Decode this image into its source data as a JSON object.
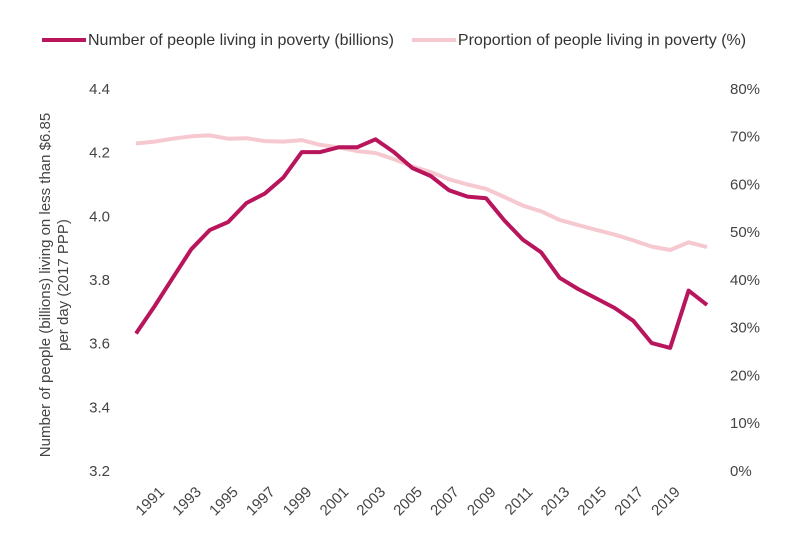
{
  "chart_data": {
    "type": "line",
    "y_axis_label": "Number of people (billions) living on less than $6.85 per day (2017 PPP)",
    "categories": [
      null,
      "1991",
      null,
      "1993",
      null,
      "1995",
      null,
      "1997",
      null,
      "1999",
      null,
      "2001",
      null,
      "2003",
      null,
      "2005",
      null,
      "2007",
      null,
      "2009",
      null,
      "2011",
      null,
      "2013",
      null,
      "2015",
      null,
      "2017",
      null,
      "2019",
      null,
      null
    ],
    "series": [
      {
        "name": "Number of people living in poverty (billions)",
        "color": "#b8155c",
        "values": [
          3.635,
          3.72,
          3.81,
          3.9,
          3.96,
          3.985,
          4.045,
          4.075,
          4.125,
          4.205,
          4.205,
          4.22,
          4.22,
          4.245,
          4.205,
          4.155,
          4.13,
          4.085,
          4.065,
          4.06,
          3.99,
          3.93,
          3.89,
          3.81,
          3.775,
          3.745,
          3.715,
          3.675,
          3.605,
          3.59,
          3.77,
          3.725
        ]
      },
      {
        "name": "Proportion of people living in poverty (%)",
        "color": "#f6c8cf",
        "axis": "y2",
        "values": [
          68.8,
          69.2,
          69.8,
          70.3,
          70.5,
          69.8,
          69.9,
          69.3,
          69.2,
          69.5,
          68.5,
          68,
          67.2,
          66.8,
          65.5,
          64,
          62.8,
          61.3,
          60.2,
          59.3,
          57.6,
          55.8,
          54.6,
          52.8,
          51.7,
          50.7,
          49.7,
          48.5,
          47.2,
          46.5,
          48.1,
          47.1
        ]
      }
    ],
    "ylim": [
      3.2,
      4.4
    ],
    "yticks": [
      3.2,
      3.4,
      3.6,
      3.8,
      {
        "value": 4,
        "label": "4.0"
      },
      4.2,
      4.4
    ],
    "y2lim": [
      0,
      80
    ],
    "y2ticks": [
      {
        "value": 0,
        "label": "0%"
      },
      {
        "value": 10,
        "label": "10%"
      },
      {
        "value": 20,
        "label": "20%"
      },
      {
        "value": 30,
        "label": "30%"
      },
      {
        "value": 40,
        "label": "40%"
      },
      {
        "value": 50,
        "label": "50%"
      },
      {
        "value": 60,
        "label": "60%"
      },
      {
        "value": 70,
        "label": "70%"
      },
      {
        "value": 80,
        "label": "80%"
      }
    ],
    "legend": "top"
  }
}
